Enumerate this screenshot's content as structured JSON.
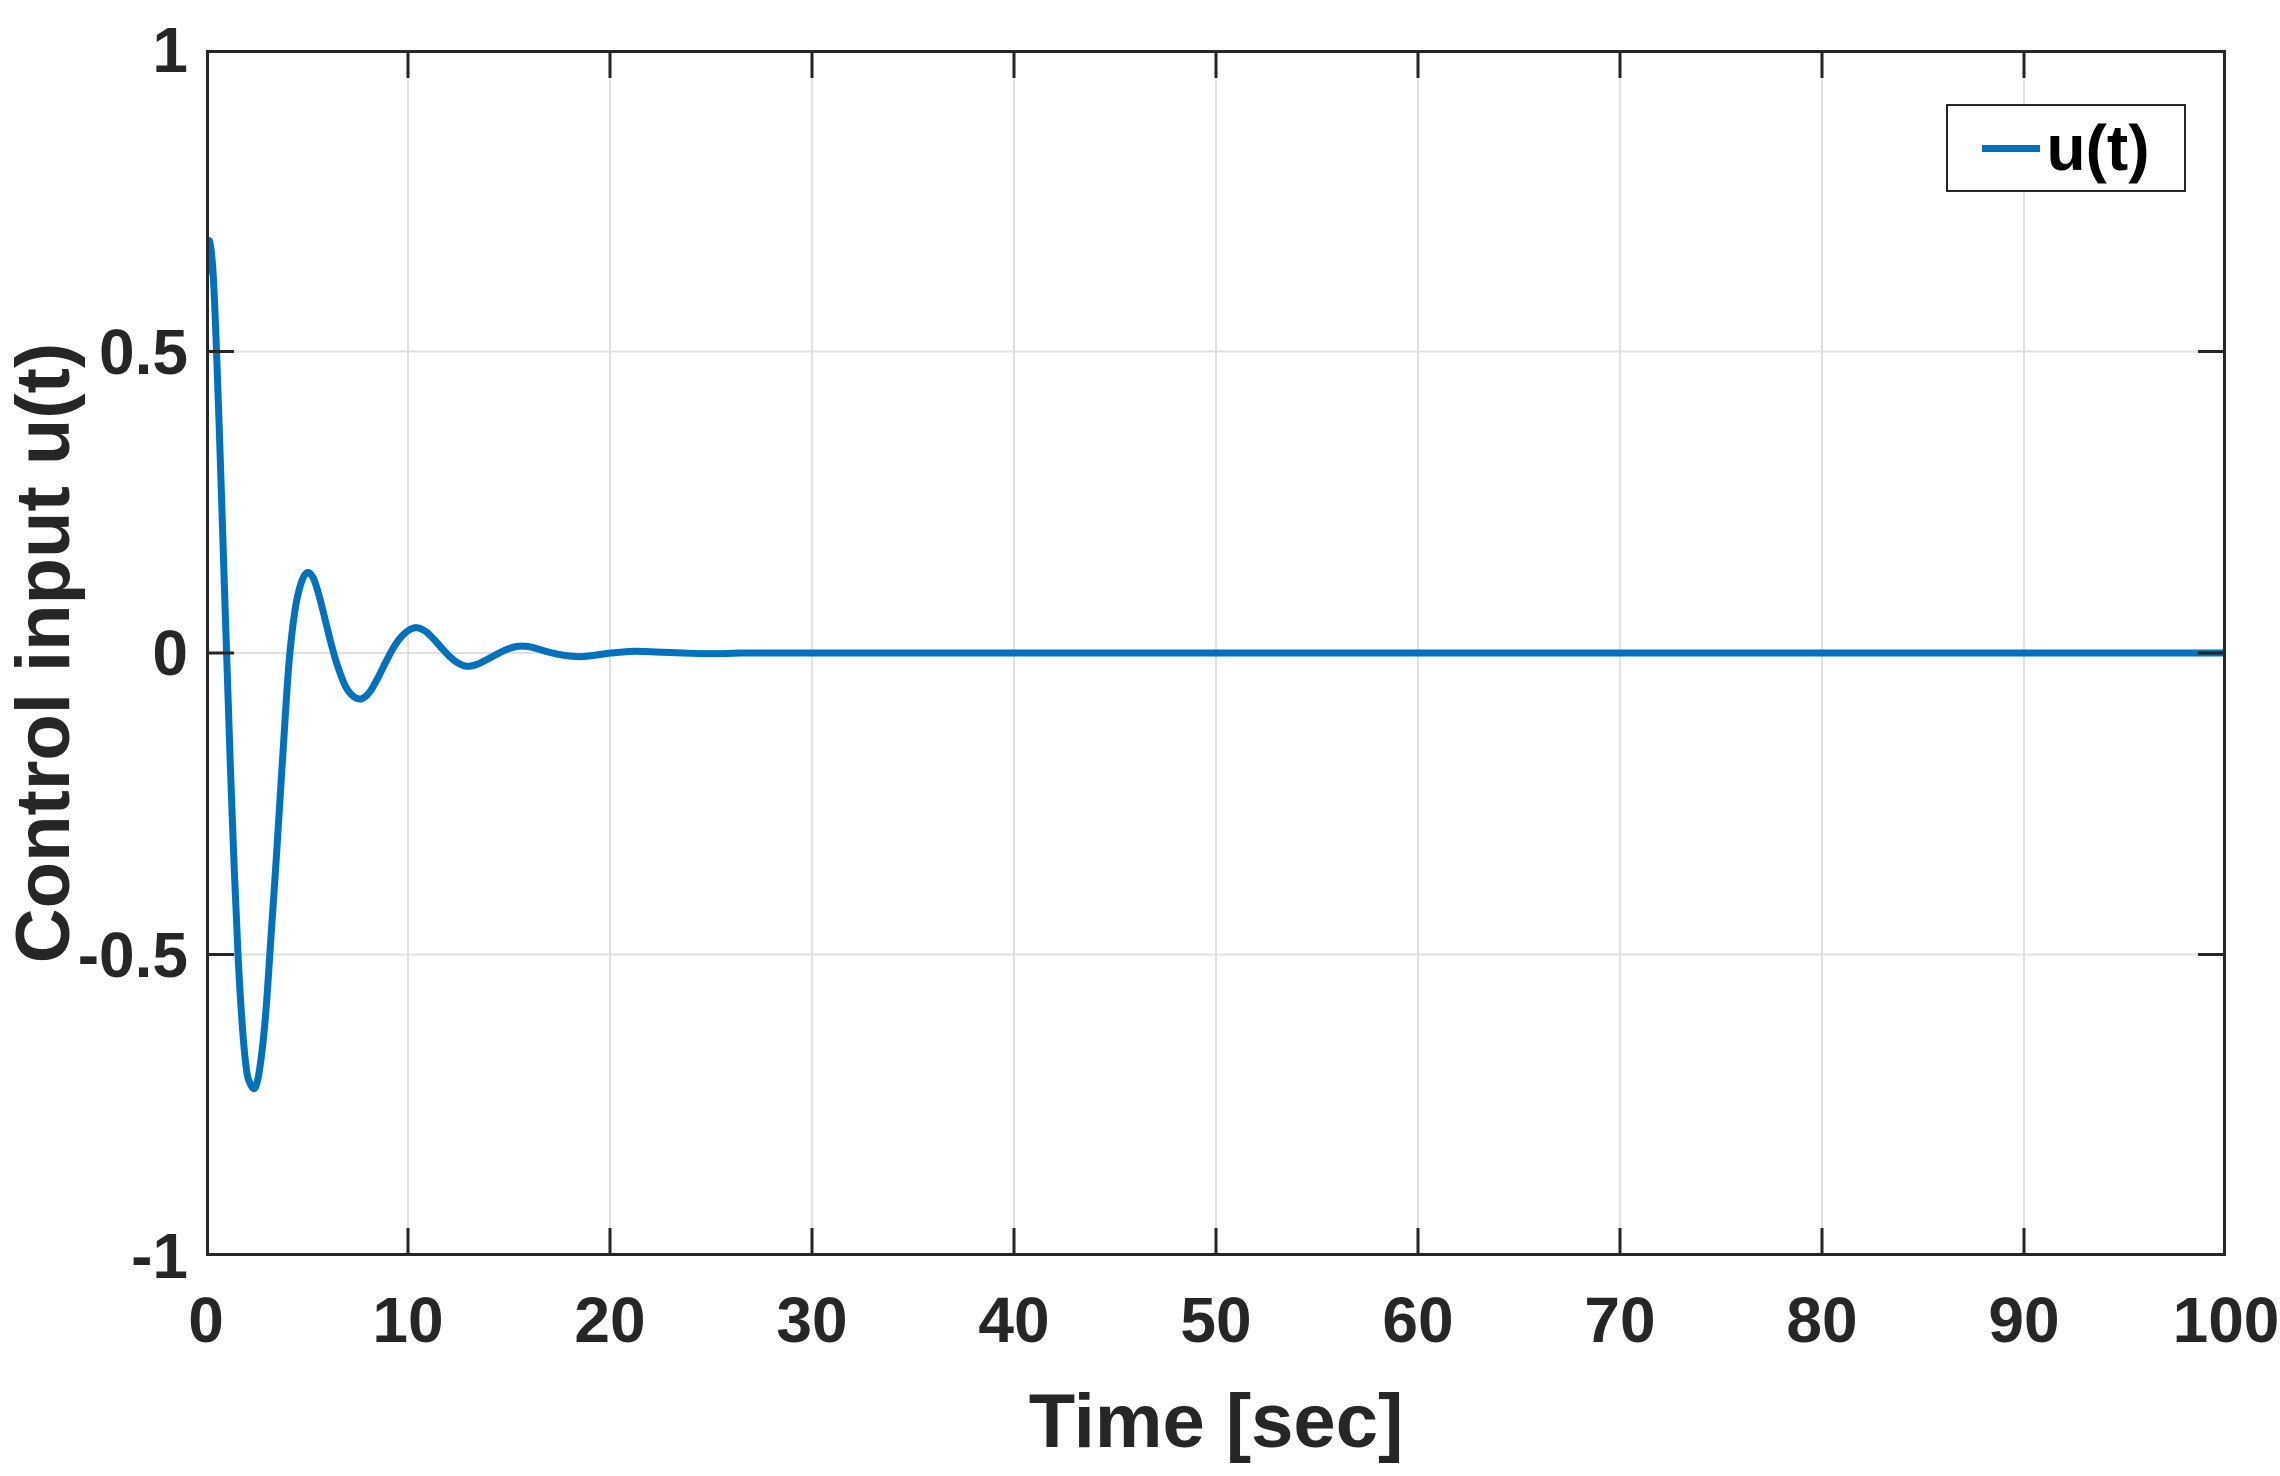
{
  "colors": {
    "line": "#0072BD",
    "axis": "#262626",
    "grid": "#e0e0e0",
    "text": "#262626",
    "background": "#ffffff"
  },
  "chart_data": {
    "type": "line",
    "title": "",
    "xlabel": "Time [sec]",
    "ylabel": "Control input u(t)",
    "xlim": [
      0,
      100
    ],
    "ylim": [
      -1,
      1
    ],
    "grid": true,
    "xticks": [
      0,
      10,
      20,
      30,
      40,
      50,
      60,
      70,
      80,
      90,
      100
    ],
    "xtick_labels": [
      "0",
      "10",
      "20",
      "30",
      "40",
      "50",
      "60",
      "70",
      "80",
      "90",
      "100"
    ],
    "yticks": [
      -1,
      -0.5,
      0,
      0.5,
      1
    ],
    "ytick_labels": [
      "-1",
      "-0.5",
      "0",
      "0.5",
      "1"
    ],
    "grid_xticks": [
      10,
      20,
      30,
      40,
      50,
      60,
      70,
      80,
      90
    ],
    "grid_yticks": [
      -0.5,
      0,
      0.5
    ],
    "legend": {
      "position": "northeast",
      "entries": [
        {
          "label": "u(t)"
        }
      ]
    },
    "series": [
      {
        "name": "u(t)",
        "points": [
          [
            0,
            0.63
          ],
          [
            0.1,
            0.675
          ],
          [
            0.2,
            0.68
          ],
          [
            0.35,
            0.63
          ],
          [
            0.5,
            0.52
          ],
          [
            0.7,
            0.33
          ],
          [
            0.9,
            0.12
          ],
          [
            1.05,
            -0.03
          ],
          [
            1.2,
            -0.18
          ],
          [
            1.4,
            -0.36
          ],
          [
            1.6,
            -0.51
          ],
          [
            1.8,
            -0.62
          ],
          [
            2.0,
            -0.69
          ],
          [
            2.2,
            -0.715
          ],
          [
            2.45,
            -0.72
          ],
          [
            2.7,
            -0.68
          ],
          [
            2.95,
            -0.6
          ],
          [
            3.2,
            -0.48
          ],
          [
            3.5,
            -0.33
          ],
          [
            3.8,
            -0.17
          ],
          [
            4.1,
            -0.02
          ],
          [
            4.4,
            0.07
          ],
          [
            4.7,
            0.115
          ],
          [
            5.0,
            0.133
          ],
          [
            5.3,
            0.125
          ],
          [
            5.6,
            0.095
          ],
          [
            5.9,
            0.055
          ],
          [
            6.2,
            0.015
          ],
          [
            6.5,
            -0.02
          ],
          [
            6.9,
            -0.055
          ],
          [
            7.3,
            -0.072
          ],
          [
            7.7,
            -0.076
          ],
          [
            8.1,
            -0.065
          ],
          [
            8.5,
            -0.042
          ],
          [
            8.9,
            -0.015
          ],
          [
            9.3,
            0.01
          ],
          [
            9.7,
            0.028
          ],
          [
            10.1,
            0.039
          ],
          [
            10.45,
            0.042
          ],
          [
            10.9,
            0.035
          ],
          [
            11.3,
            0.022
          ],
          [
            11.7,
            0.007
          ],
          [
            12.1,
            -0.007
          ],
          [
            12.5,
            -0.017
          ],
          [
            12.9,
            -0.022
          ],
          [
            13.4,
            -0.019
          ],
          [
            13.9,
            -0.011
          ],
          [
            14.4,
            -0.002
          ],
          [
            14.9,
            0.006
          ],
          [
            15.4,
            0.011
          ],
          [
            15.9,
            0.011
          ],
          [
            16.4,
            0.007
          ],
          [
            16.9,
            0.002
          ],
          [
            17.4,
            -0.002
          ],
          [
            18.0,
            -0.005
          ],
          [
            18.6,
            -0.006
          ],
          [
            19.2,
            -0.004
          ],
          [
            19.8,
            -0.001
          ],
          [
            20.4,
            0.001
          ],
          [
            21.2,
            0.003
          ],
          [
            22.0,
            0.002
          ],
          [
            22.8,
            0.001
          ],
          [
            23.6,
            0.0
          ],
          [
            24.5,
            -0.001
          ],
          [
            25.5,
            -0.001
          ],
          [
            26.5,
            0.0
          ],
          [
            28,
            0.0
          ],
          [
            30,
            0.0
          ],
          [
            35,
            0.0
          ],
          [
            40,
            0.0
          ],
          [
            45,
            0.0
          ],
          [
            50,
            0.0
          ],
          [
            55,
            0.0
          ],
          [
            60,
            0.0
          ],
          [
            65,
            0.0
          ],
          [
            70,
            0.0
          ],
          [
            75,
            0.0
          ],
          [
            80,
            0.0
          ],
          [
            85,
            0.0
          ],
          [
            90,
            0.0
          ],
          [
            95,
            0.0
          ],
          [
            100,
            0.0
          ]
        ]
      }
    ]
  }
}
